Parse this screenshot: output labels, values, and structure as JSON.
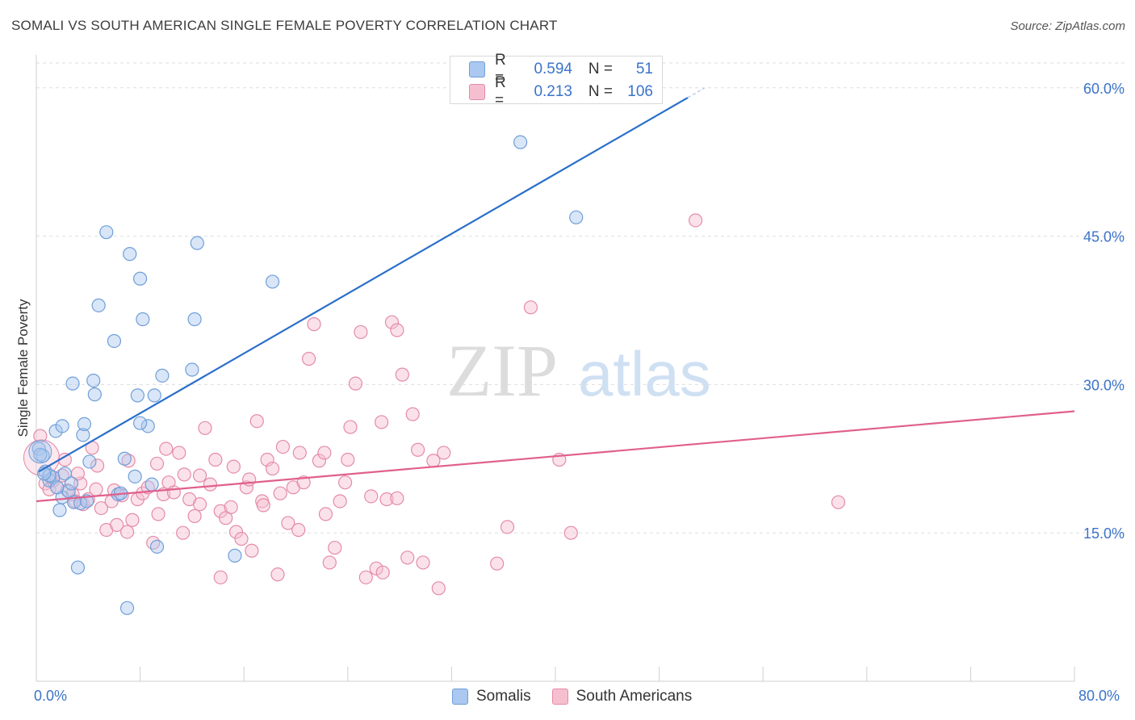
{
  "header": {
    "title": "SOMALI VS SOUTH AMERICAN SINGLE FEMALE POVERTY CORRELATION CHART",
    "source": "Source: ZipAtlas.com"
  },
  "watermark": {
    "part1": "ZIP",
    "part2": "atlas"
  },
  "stats_legend": {
    "rows": [
      {
        "r_label": "R =",
        "r_value": "0.594",
        "n_label": "N =",
        "n_value": "51"
      },
      {
        "r_label": "R =",
        "r_value": "0.213",
        "n_label": "N =",
        "n_value": "106"
      }
    ]
  },
  "x_axis_labels": {
    "min": "0.0%",
    "max": "80.0%"
  },
  "colors": {
    "somali_fill": "#aac8f0",
    "somali_stroke": "#6f9fd8",
    "somali_line": "#2a6fca",
    "sa_fill": "#f6bfd0",
    "sa_stroke": "#e48ba8",
    "sa_line": "#e0608c",
    "axis_text": "#3b73c9"
  },
  "chart_data": {
    "type": "scatter",
    "title": "SOMALI VS SOUTH AMERICAN SINGLE FEMALE POVERTY CORRELATION CHART",
    "xlabel": "",
    "ylabel": "Single Female Poverty",
    "xlim": [
      0,
      80
    ],
    "ylim": [
      0,
      63
    ],
    "y_ticks": [
      {
        "value": 15,
        "label": "15.0%"
      },
      {
        "value": 30,
        "label": "30.0%"
      },
      {
        "value": 45,
        "label": "45.0%"
      },
      {
        "value": 60,
        "label": "60.0%"
      }
    ],
    "grid": true,
    "legend_position": "bottom",
    "series": [
      {
        "name": "Somalis",
        "r": 0.594,
        "n": 51,
        "trend": {
          "x": [
            0.2,
            50.2
          ],
          "y": [
            21.2,
            59.0
          ]
        },
        "points": [
          [
            0.2,
            23.5
          ],
          [
            0.5,
            22.8
          ],
          [
            0.7,
            21.2
          ],
          [
            1.0,
            20.3
          ],
          [
            1.3,
            20.6
          ],
          [
            1.5,
            25.3
          ],
          [
            1.8,
            17.3
          ],
          [
            2.0,
            18.6
          ],
          [
            2.2,
            21.0
          ],
          [
            2.5,
            19.2
          ],
          [
            2.7,
            20.0
          ],
          [
            2.9,
            18.1
          ],
          [
            3.2,
            11.5
          ],
          [
            3.4,
            18.0
          ],
          [
            3.6,
            24.9
          ],
          [
            3.9,
            18.2
          ],
          [
            4.1,
            22.2
          ],
          [
            4.4,
            30.4
          ],
          [
            4.5,
            29.0
          ],
          [
            4.8,
            38.0
          ],
          [
            5.4,
            45.4
          ],
          [
            6.0,
            34.4
          ],
          [
            6.3,
            18.9
          ],
          [
            6.8,
            22.5
          ],
          [
            7.0,
            7.4
          ],
          [
            7.2,
            43.2
          ],
          [
            7.6,
            20.7
          ],
          [
            7.8,
            28.9
          ],
          [
            8.0,
            40.7
          ],
          [
            8.2,
            36.6
          ],
          [
            8.6,
            25.8
          ],
          [
            8.9,
            19.9
          ],
          [
            9.1,
            28.9
          ],
          [
            9.3,
            13.6
          ],
          [
            9.7,
            30.9
          ],
          [
            12.0,
            31.5
          ],
          [
            12.2,
            36.6
          ],
          [
            12.4,
            44.3
          ],
          [
            15.3,
            12.7
          ],
          [
            18.2,
            40.4
          ],
          [
            37.3,
            54.5
          ],
          [
            41.6,
            46.9
          ],
          [
            2.8,
            30.1
          ],
          [
            3.7,
            26.0
          ],
          [
            6.5,
            19.0
          ],
          [
            8.0,
            26.1
          ],
          [
            1.0,
            20.8
          ],
          [
            0.6,
            21.0
          ],
          [
            2.0,
            25.8
          ],
          [
            1.6,
            19.6
          ],
          [
            0.3,
            22.9
          ]
        ]
      },
      {
        "name": "South Americans",
        "r": 0.213,
        "n": 106,
        "trend": {
          "x": [
            0.0,
            80.0
          ],
          "y": [
            18.2,
            27.3
          ]
        },
        "points": [
          [
            0.3,
            24.8
          ],
          [
            0.7,
            20.0
          ],
          [
            1.0,
            19.4
          ],
          [
            1.3,
            20.3
          ],
          [
            1.6,
            19.6
          ],
          [
            2.0,
            20.8
          ],
          [
            2.4,
            19.3
          ],
          [
            2.8,
            18.9
          ],
          [
            3.0,
            18.2
          ],
          [
            3.4,
            20.0
          ],
          [
            3.6,
            17.9
          ],
          [
            4.0,
            18.4
          ],
          [
            4.3,
            23.6
          ],
          [
            4.6,
            19.4
          ],
          [
            5.0,
            17.5
          ],
          [
            5.4,
            15.3
          ],
          [
            5.8,
            18.2
          ],
          [
            6.2,
            15.8
          ],
          [
            6.6,
            18.8
          ],
          [
            7.0,
            15.1
          ],
          [
            7.4,
            16.3
          ],
          [
            7.8,
            18.4
          ],
          [
            8.2,
            19.0
          ],
          [
            8.6,
            19.6
          ],
          [
            9.0,
            14.0
          ],
          [
            9.4,
            16.9
          ],
          [
            9.8,
            18.9
          ],
          [
            10.2,
            20.1
          ],
          [
            10.6,
            19.1
          ],
          [
            11.0,
            23.1
          ],
          [
            11.4,
            20.9
          ],
          [
            11.8,
            18.4
          ],
          [
            12.2,
            16.7
          ],
          [
            12.6,
            20.8
          ],
          [
            13.0,
            25.6
          ],
          [
            13.4,
            19.9
          ],
          [
            13.8,
            22.4
          ],
          [
            14.2,
            17.2
          ],
          [
            14.6,
            16.5
          ],
          [
            15.0,
            17.6
          ],
          [
            15.4,
            15.1
          ],
          [
            15.8,
            14.4
          ],
          [
            16.2,
            19.6
          ],
          [
            16.6,
            13.2
          ],
          [
            17.0,
            26.3
          ],
          [
            17.4,
            18.2
          ],
          [
            17.8,
            22.4
          ],
          [
            18.2,
            21.5
          ],
          [
            18.6,
            10.8
          ],
          [
            19.0,
            23.7
          ],
          [
            19.4,
            16.0
          ],
          [
            19.8,
            19.6
          ],
          [
            20.2,
            15.3
          ],
          [
            20.6,
            20.1
          ],
          [
            21.0,
            32.6
          ],
          [
            21.4,
            36.1
          ],
          [
            21.8,
            22.3
          ],
          [
            22.2,
            23.1
          ],
          [
            22.6,
            12.0
          ],
          [
            23.0,
            13.5
          ],
          [
            23.4,
            18.2
          ],
          [
            23.8,
            20.1
          ],
          [
            24.2,
            25.7
          ],
          [
            24.6,
            30.1
          ],
          [
            25.0,
            35.3
          ],
          [
            25.4,
            10.5
          ],
          [
            25.8,
            18.7
          ],
          [
            26.2,
            11.4
          ],
          [
            26.6,
            26.2
          ],
          [
            27.0,
            18.4
          ],
          [
            27.4,
            36.3
          ],
          [
            27.8,
            35.5
          ],
          [
            28.2,
            31.0
          ],
          [
            28.6,
            12.5
          ],
          [
            29.0,
            27.0
          ],
          [
            29.4,
            23.4
          ],
          [
            29.8,
            12.0
          ],
          [
            30.6,
            22.3
          ],
          [
            31.0,
            9.4
          ],
          [
            31.4,
            23.1
          ],
          [
            35.5,
            11.9
          ],
          [
            36.3,
            15.6
          ],
          [
            38.1,
            37.8
          ],
          [
            40.3,
            22.4
          ],
          [
            41.2,
            15.0
          ],
          [
            50.8,
            46.6
          ],
          [
            61.8,
            18.1
          ],
          [
            14.2,
            10.5
          ],
          [
            18.8,
            19.0
          ],
          [
            20.3,
            23.1
          ],
          [
            24.0,
            22.4
          ],
          [
            26.7,
            11.0
          ],
          [
            16.4,
            20.4
          ],
          [
            12.6,
            17.9
          ],
          [
            9.3,
            22.0
          ],
          [
            11.3,
            15.0
          ],
          [
            6.0,
            19.3
          ],
          [
            7.1,
            22.3
          ],
          [
            4.7,
            21.8
          ],
          [
            3.2,
            21.0
          ],
          [
            27.8,
            18.5
          ],
          [
            10.0,
            23.5
          ],
          [
            22.3,
            16.9
          ],
          [
            2.2,
            22.4
          ],
          [
            17.5,
            17.8
          ],
          [
            15.2,
            21.7
          ]
        ]
      }
    ]
  }
}
